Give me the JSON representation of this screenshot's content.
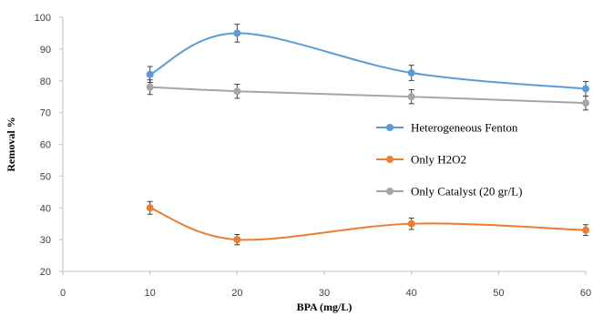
{
  "chart_data": {
    "type": "line",
    "xlabel": "BPA (mg/L)",
    "ylabel": "Removal %",
    "xlim": [
      0,
      60
    ],
    "ylim": [
      20,
      100
    ],
    "xticks": [
      "0",
      "10",
      "20",
      "30",
      "40",
      "50",
      "60"
    ],
    "yticks": [
      "20",
      "30",
      "40",
      "50",
      "60",
      "70",
      "80",
      "90",
      "100"
    ],
    "grid": false,
    "legend_position": "right",
    "series": [
      {
        "name": "Heterogeneous Fenton",
        "color": "#5b9bd5",
        "x": [
          10,
          20,
          40,
          60
        ],
        "y": [
          82,
          95,
          82.5,
          77.5
        ],
        "error": [
          2.5,
          2.8,
          2.4,
          2.3
        ]
      },
      {
        "name": "Only H2O2",
        "color": "#ed7d31",
        "x": [
          10,
          20,
          40,
          60
        ],
        "y": [
          40,
          30,
          35,
          33
        ],
        "error": [
          2.0,
          1.6,
          1.8,
          1.7
        ]
      },
      {
        "name": "Only Catalyst (20 gr/L)",
        "color": "#a5a5a5",
        "x": [
          10,
          20,
          40,
          60
        ],
        "y": [
          78,
          76.7,
          75,
          73
        ],
        "error": [
          2.3,
          2.2,
          2.2,
          2.2
        ]
      }
    ]
  }
}
